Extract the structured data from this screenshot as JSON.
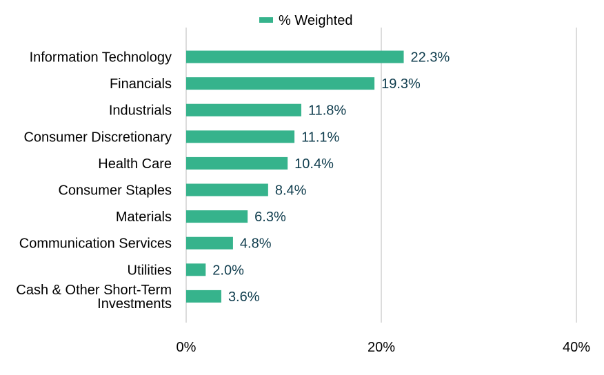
{
  "chart_data": {
    "type": "bar",
    "orientation": "horizontal",
    "categories": [
      [
        "Information Technology"
      ],
      [
        "Financials"
      ],
      [
        "Industrials"
      ],
      [
        "Consumer Discretionary"
      ],
      [
        "Health Care"
      ],
      [
        "Consumer Staples"
      ],
      [
        "Materials"
      ],
      [
        "Communication Services"
      ],
      [
        "Utilities"
      ],
      [
        "Cash & Other Short-Term",
        "Investments"
      ]
    ],
    "series": [
      {
        "name": "% Weighted",
        "color": "#36b38c",
        "values": [
          22.3,
          19.3,
          11.8,
          11.1,
          10.4,
          8.4,
          6.3,
          4.8,
          2.0,
          3.6
        ],
        "value_labels": [
          "22.3%",
          "19.3%",
          "11.8%",
          "11.1%",
          "10.4%",
          "8.4%",
          "6.3%",
          "4.8%",
          "2.0%",
          "3.6%"
        ]
      }
    ],
    "xlim": [
      0,
      40
    ],
    "x_ticks": [
      0,
      20,
      40
    ],
    "x_tick_labels": [
      "0%",
      "20%",
      "40%"
    ],
    "grid": "vertical",
    "legend_position": "top-center",
    "title": "",
    "xlabel": "",
    "ylabel": ""
  }
}
